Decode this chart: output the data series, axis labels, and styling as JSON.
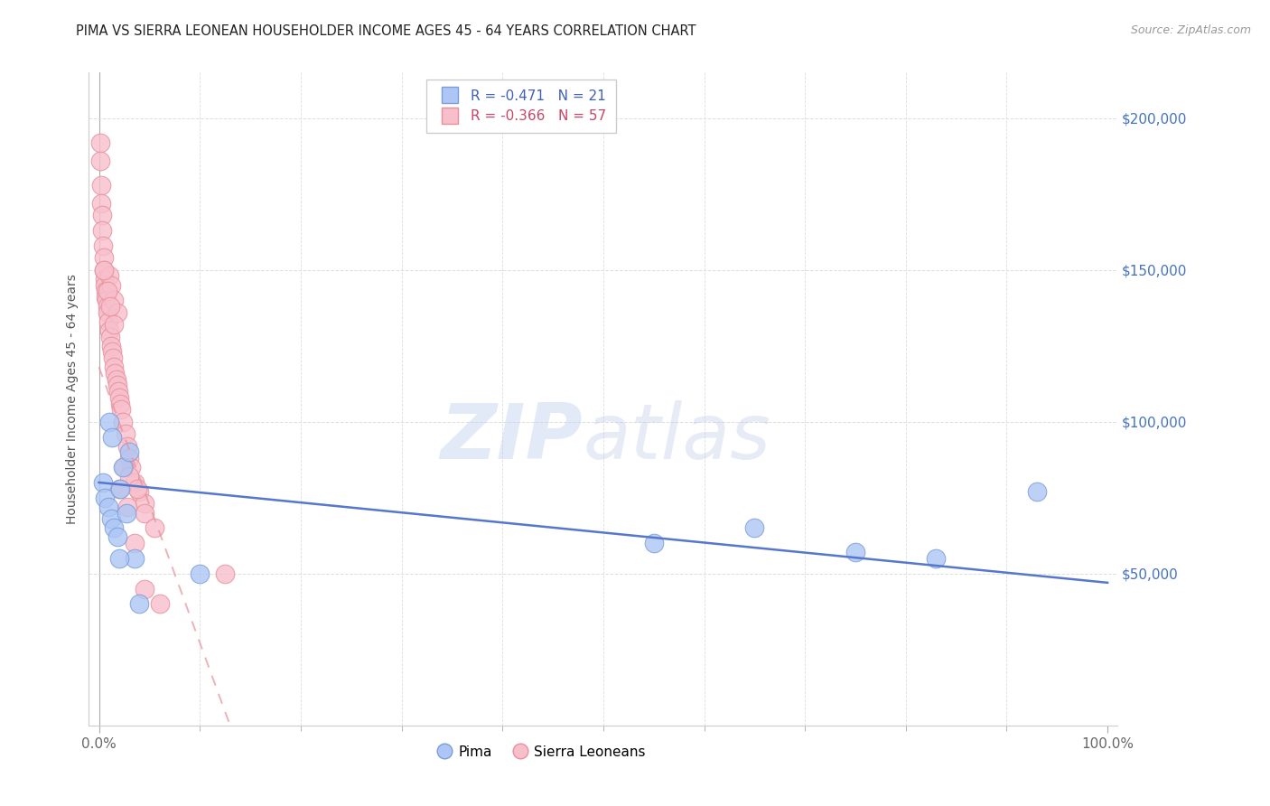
{
  "title": "PIMA VS SIERRA LEONEAN HOUSEHOLDER INCOME AGES 45 - 64 YEARS CORRELATION CHART",
  "source_text": "Source: ZipAtlas.com",
  "ylabel_text": "Householder Income Ages 45 - 64 years",
  "x_tick_positions": [
    0,
    100
  ],
  "x_tick_labels": [
    "0.0%",
    "100.0%"
  ],
  "x_tick_minor": [
    10,
    20,
    30,
    40,
    50,
    60,
    70,
    80,
    90
  ],
  "y_ticks": [
    0,
    50000,
    100000,
    150000,
    200000
  ],
  "y_tick_labels": [
    "",
    "$50,000",
    "$100,000",
    "$150,000",
    "$200,000"
  ],
  "xlim": [
    -1,
    101
  ],
  "ylim": [
    0,
    215000
  ],
  "blue_fill": "#adc6f5",
  "pink_fill": "#f7bfcc",
  "blue_edge": "#7a9ed8",
  "pink_edge": "#e8909a",
  "trend_blue_color": "#5577cc",
  "trend_pink_color": "#e8909a",
  "legend_r_blue": "-0.471",
  "legend_n_blue": "21",
  "legend_r_pink": "-0.366",
  "legend_n_pink": "57",
  "watermark_zip": "ZIP",
  "watermark_atlas": "atlas",
  "pima_x": [
    0.4,
    0.6,
    0.9,
    1.2,
    1.5,
    1.8,
    2.1,
    2.4,
    2.7,
    3.0,
    3.5,
    4.0,
    1.0,
    1.3,
    2.0,
    55.0,
    65.0,
    75.0,
    83.0,
    93.0,
    10.0
  ],
  "pima_y": [
    80000,
    75000,
    72000,
    68000,
    65000,
    62000,
    78000,
    85000,
    70000,
    90000,
    55000,
    40000,
    100000,
    95000,
    55000,
    60000,
    65000,
    57000,
    55000,
    77000,
    50000
  ],
  "sierra_x": [
    0.1,
    0.15,
    0.2,
    0.25,
    0.3,
    0.35,
    0.4,
    0.45,
    0.5,
    0.55,
    0.6,
    0.65,
    0.7,
    0.75,
    0.8,
    0.85,
    0.9,
    1.0,
    1.1,
    1.2,
    1.3,
    1.4,
    1.5,
    1.6,
    1.7,
    1.8,
    1.9,
    2.0,
    2.1,
    2.2,
    2.4,
    2.6,
    2.8,
    3.0,
    3.2,
    3.5,
    4.0,
    4.5,
    1.0,
    1.2,
    1.5,
    1.8,
    2.5,
    3.0,
    3.8,
    4.5,
    5.5,
    0.5,
    0.8,
    1.1,
    1.5,
    2.0,
    2.8,
    3.5,
    4.5,
    6.0,
    12.5
  ],
  "sierra_y": [
    192000,
    186000,
    178000,
    172000,
    168000,
    163000,
    158000,
    154000,
    150000,
    147000,
    145000,
    143000,
    141000,
    140000,
    138000,
    136000,
    133000,
    130000,
    128000,
    125000,
    123000,
    121000,
    118000,
    116000,
    114000,
    112000,
    110000,
    108000,
    106000,
    104000,
    100000,
    96000,
    92000,
    88000,
    85000,
    80000,
    77000,
    73000,
    148000,
    145000,
    140000,
    136000,
    85000,
    82000,
    78000,
    70000,
    65000,
    150000,
    143000,
    138000,
    132000,
    78000,
    72000,
    60000,
    45000,
    40000,
    50000
  ],
  "blue_trend_x0": 0,
  "blue_trend_y0": 80000,
  "blue_trend_x1": 100,
  "blue_trend_y1": 47000,
  "pink_trend_x0": 0,
  "pink_trend_y0": 118000,
  "pink_trend_x1": 13,
  "pink_trend_y1": 0
}
